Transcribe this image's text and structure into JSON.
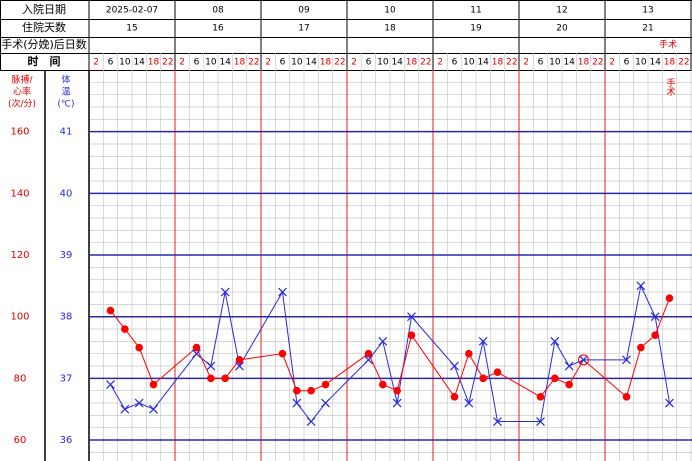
{
  "chart_data": {
    "type": "line",
    "row_labels": {
      "admission_date": "入院日期",
      "hospital_days": "住院天数",
      "post_op_days": "手术(分娩)后日数",
      "time": "时　间"
    },
    "dates": [
      "2025-02-07",
      "08",
      "09",
      "10",
      "11",
      "12",
      "13"
    ],
    "hospital_days": [
      15,
      16,
      17,
      18,
      19,
      20,
      21
    ],
    "post_op": [
      null,
      null,
      null,
      null,
      null,
      null,
      "手术"
    ],
    "time_slots": [
      2,
      6,
      10,
      14,
      18,
      22
    ],
    "time_slot_colors": [
      "#e00000",
      "#000000",
      "#000000",
      "#000000",
      "#e00000",
      "#e00000"
    ],
    "pulse_axis_label": [
      "脉搏/",
      "心率",
      "(次/分)"
    ],
    "temp_axis_label": [
      "体",
      "温",
      "(℃)"
    ],
    "annotation": {
      "text": "手术",
      "slot": 40
    },
    "x": [
      1,
      2,
      3,
      4,
      7,
      8,
      9,
      10,
      13,
      14,
      15,
      16,
      19,
      20,
      21,
      22,
      25,
      26,
      27,
      28,
      31,
      32,
      33,
      34,
      37,
      38,
      39,
      40
    ],
    "xlim": [
      0,
      42
    ],
    "ylim": [
      35.66,
      42
    ],
    "yticks": [
      36,
      37,
      38,
      39,
      40,
      41
    ],
    "y2lim": [
      53.2,
      180
    ],
    "y2ticks": [
      60,
      80,
      100,
      120,
      140,
      160
    ],
    "grid": true,
    "series": [
      {
        "name": "体温",
        "color": "#2a2ae0",
        "marker": "x",
        "values": [
          36.9,
          36.5,
          36.6,
          36.5,
          37.4,
          37.2,
          38.4,
          37.2,
          38.4,
          36.6,
          36.3,
          36.6,
          37.3,
          37.6,
          36.6,
          38.0,
          37.2,
          36.6,
          37.6,
          36.3,
          36.3,
          37.6,
          37.2,
          37.3,
          37.3,
          38.5,
          38.0,
          36.6
        ]
      },
      {
        "name": "脉搏",
        "color": "#ff0000",
        "marker": "dot",
        "axis": "y2",
        "values": [
          102,
          96,
          90,
          78,
          90,
          80,
          80,
          86,
          88,
          76,
          76,
          78,
          88,
          78,
          76,
          94,
          74,
          88,
          80,
          82,
          74,
          80,
          78,
          86,
          74,
          90,
          94,
          106
        ]
      }
    ]
  }
}
